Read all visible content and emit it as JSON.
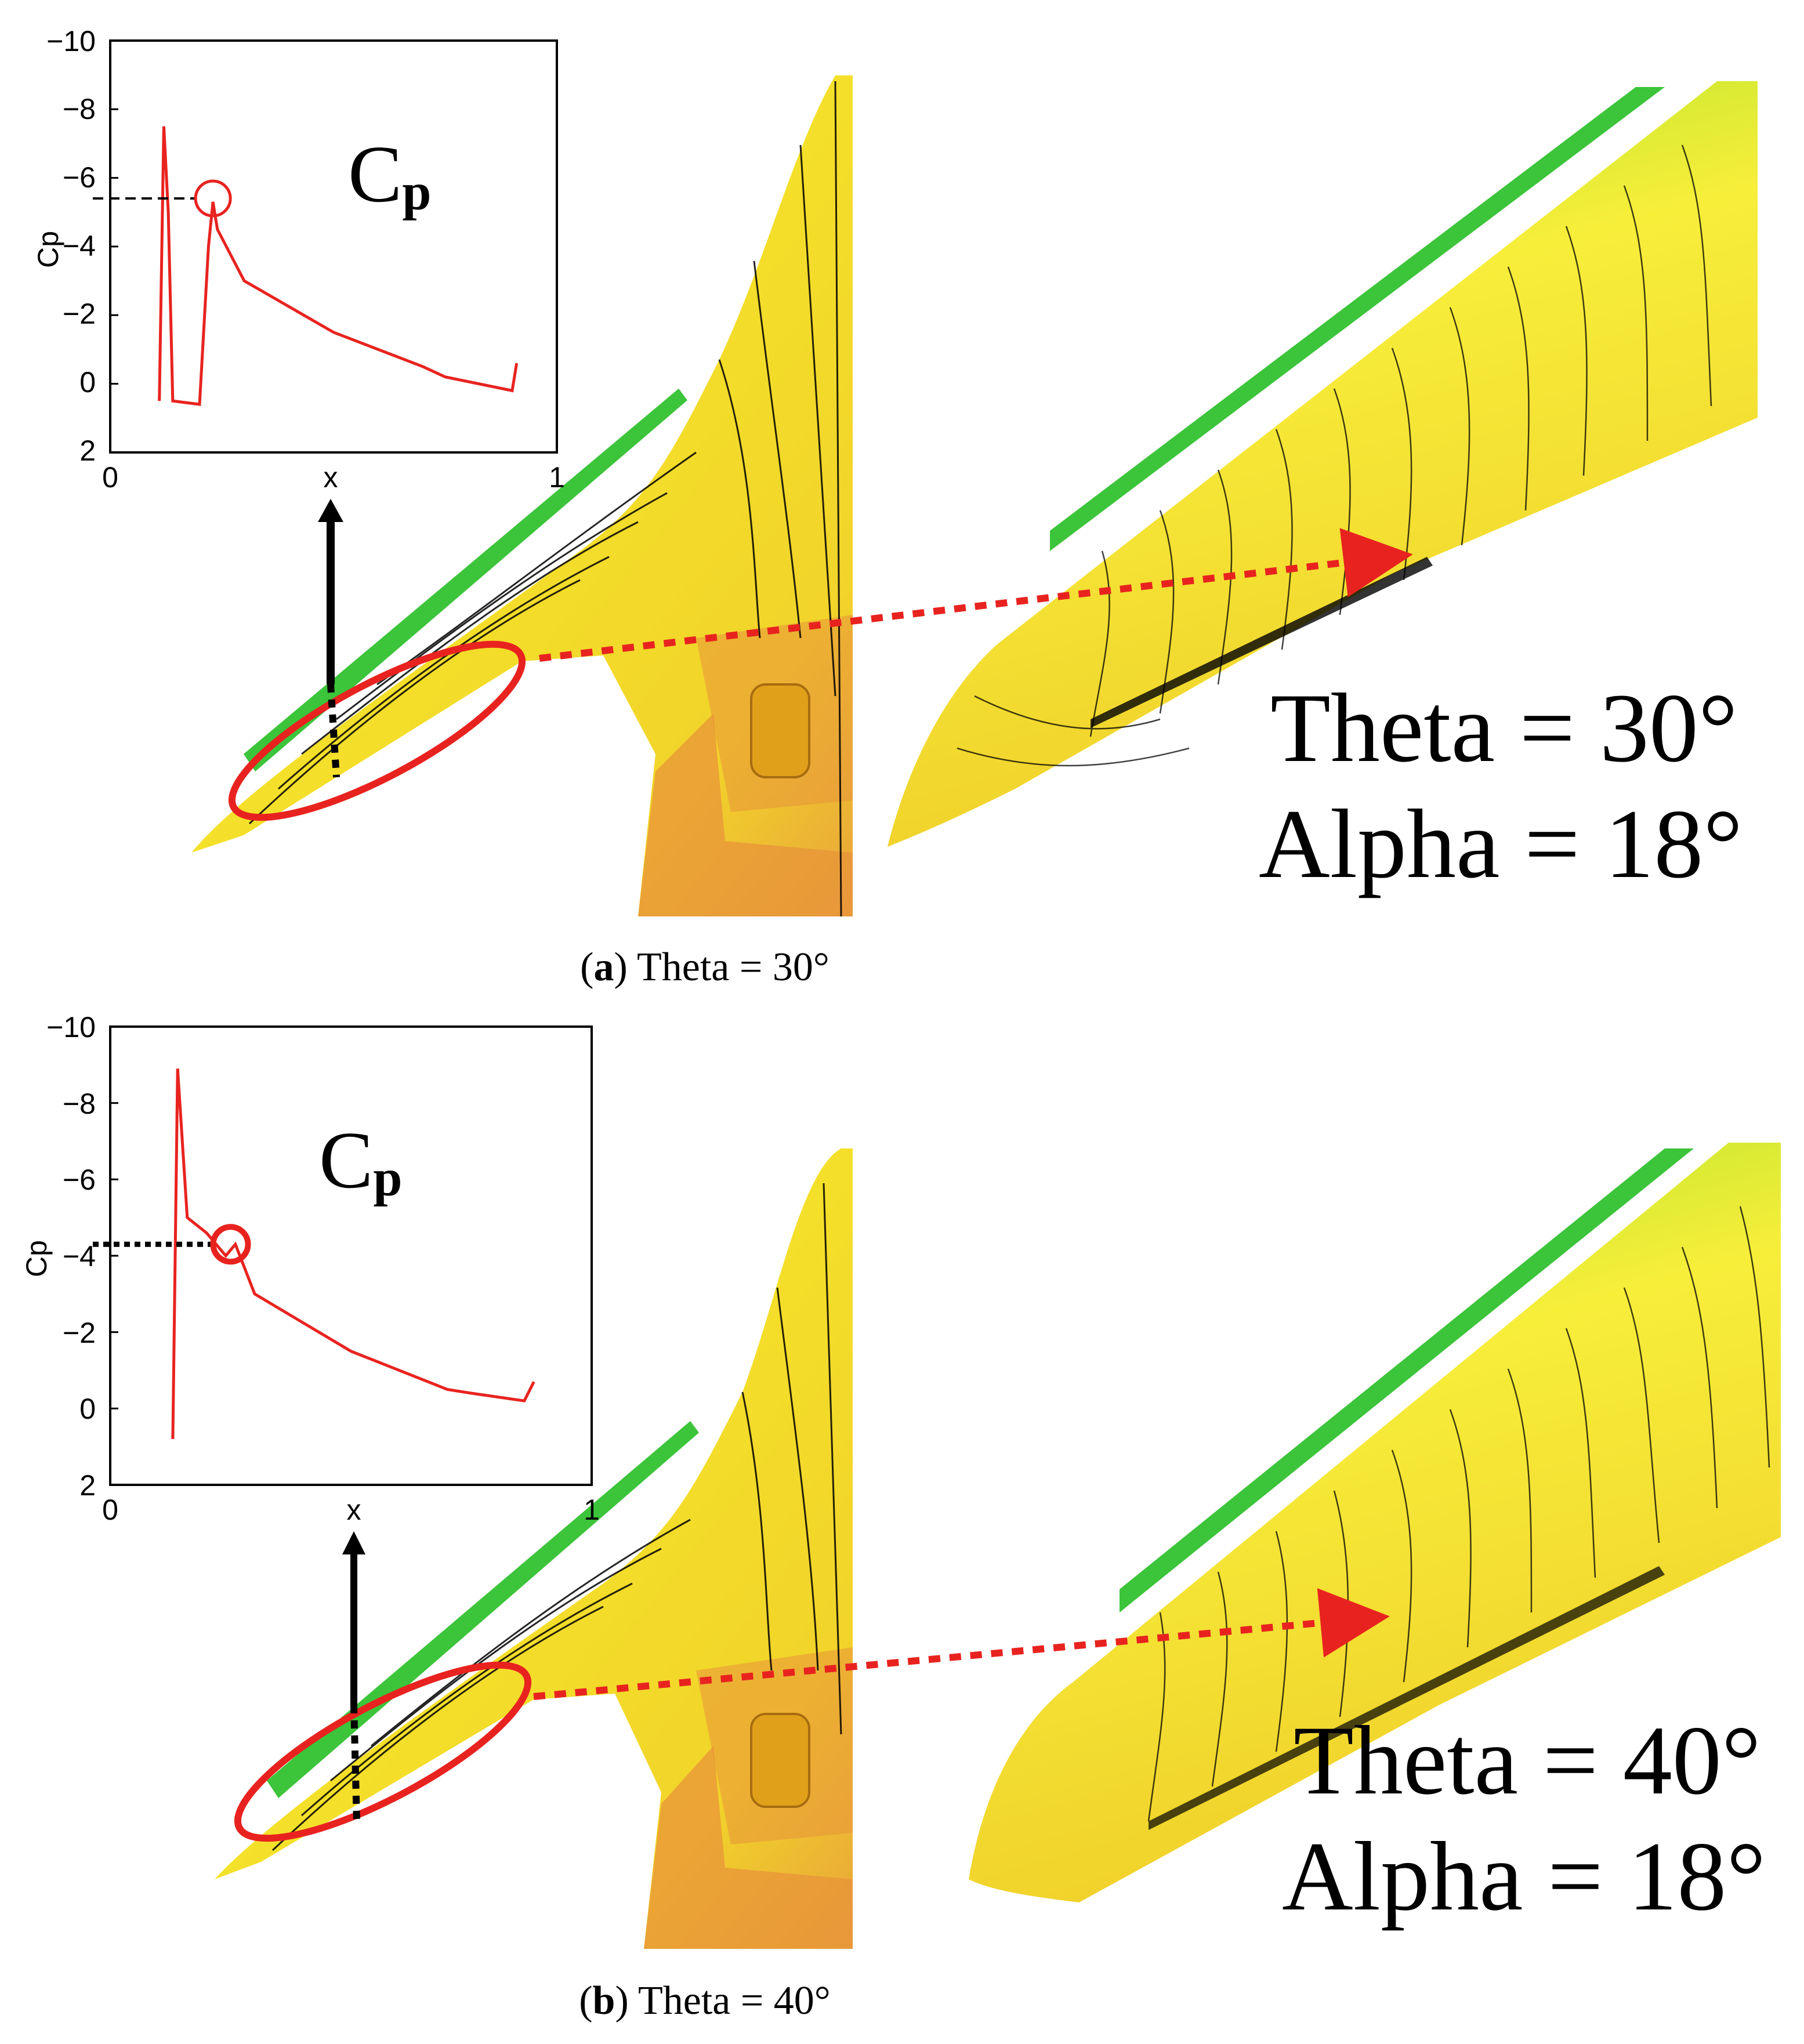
{
  "figure": {
    "panels": [
      {
        "id": "a",
        "caption_letter": "a",
        "caption_text": "Theta = 30°",
        "label_theta": "Theta = 30°",
        "label_alpha": "Alpha = 18°",
        "cp_symbol": "C",
        "cp_subscript": "p",
        "inset_ylabel": "Cp",
        "inset_xlabel": "x",
        "inset_x_ticks": [
          "0",
          "1"
        ],
        "inset_y_ticks": [
          "−10",
          "−8",
          "−6",
          "−4",
          "−2",
          "0",
          "2"
        ],
        "highlight_cp": -5.4
      },
      {
        "id": "b",
        "caption_letter": "b",
        "caption_text": "Theta = 40°",
        "label_theta": "Theta = 40°",
        "label_alpha": "Alpha = 18°",
        "cp_symbol": "C",
        "cp_subscript": "p",
        "inset_ylabel": "Cp",
        "inset_xlabel": "x",
        "inset_x_ticks": [
          "0",
          "1"
        ],
        "inset_y_ticks": [
          "−10",
          "−8",
          "−6",
          "−4",
          "−2",
          "0",
          "2"
        ],
        "highlight_cp": -4.3
      }
    ],
    "colors": {
      "curve": "#e8231f",
      "wing_yellow": "#f5e72a",
      "wing_green": "#3cc43a",
      "wing_orange": "#e8943a",
      "arrow_red": "#e8231f"
    }
  },
  "chart_data": [
    {
      "type": "line",
      "title": "Cp",
      "xlabel": "x",
      "ylabel": "Cp",
      "xlim": [
        0,
        1
      ],
      "ylim": [
        2,
        -10
      ],
      "series": [
        {
          "name": "Theta = 30°",
          "x": [
            0.11,
            0.12,
            0.13,
            0.14,
            0.2,
            0.22,
            0.23,
            0.24,
            0.3,
            0.5,
            0.7,
            0.75,
            0.9,
            0.91
          ],
          "y": [
            0.5,
            -7.5,
            -5.0,
            0.5,
            0.6,
            -4.0,
            -5.3,
            -4.5,
            -3.0,
            -1.5,
            -0.5,
            -0.2,
            0.2,
            -0.6
          ]
        }
      ]
    },
    {
      "type": "line",
      "title": "Cp",
      "xlabel": "x",
      "ylabel": "Cp",
      "xlim": [
        0,
        1
      ],
      "ylim": [
        2,
        -10
      ],
      "series": [
        {
          "name": "Theta = 40°",
          "x": [
            0.13,
            0.14,
            0.16,
            0.2,
            0.24,
            0.26,
            0.3,
            0.5,
            0.7,
            0.75,
            0.86,
            0.88
          ],
          "y": [
            0.8,
            -8.9,
            -5.0,
            -4.6,
            -4.0,
            -4.3,
            -3.0,
            -1.5,
            -0.5,
            -0.4,
            -0.2,
            -0.7
          ]
        }
      ]
    }
  ]
}
